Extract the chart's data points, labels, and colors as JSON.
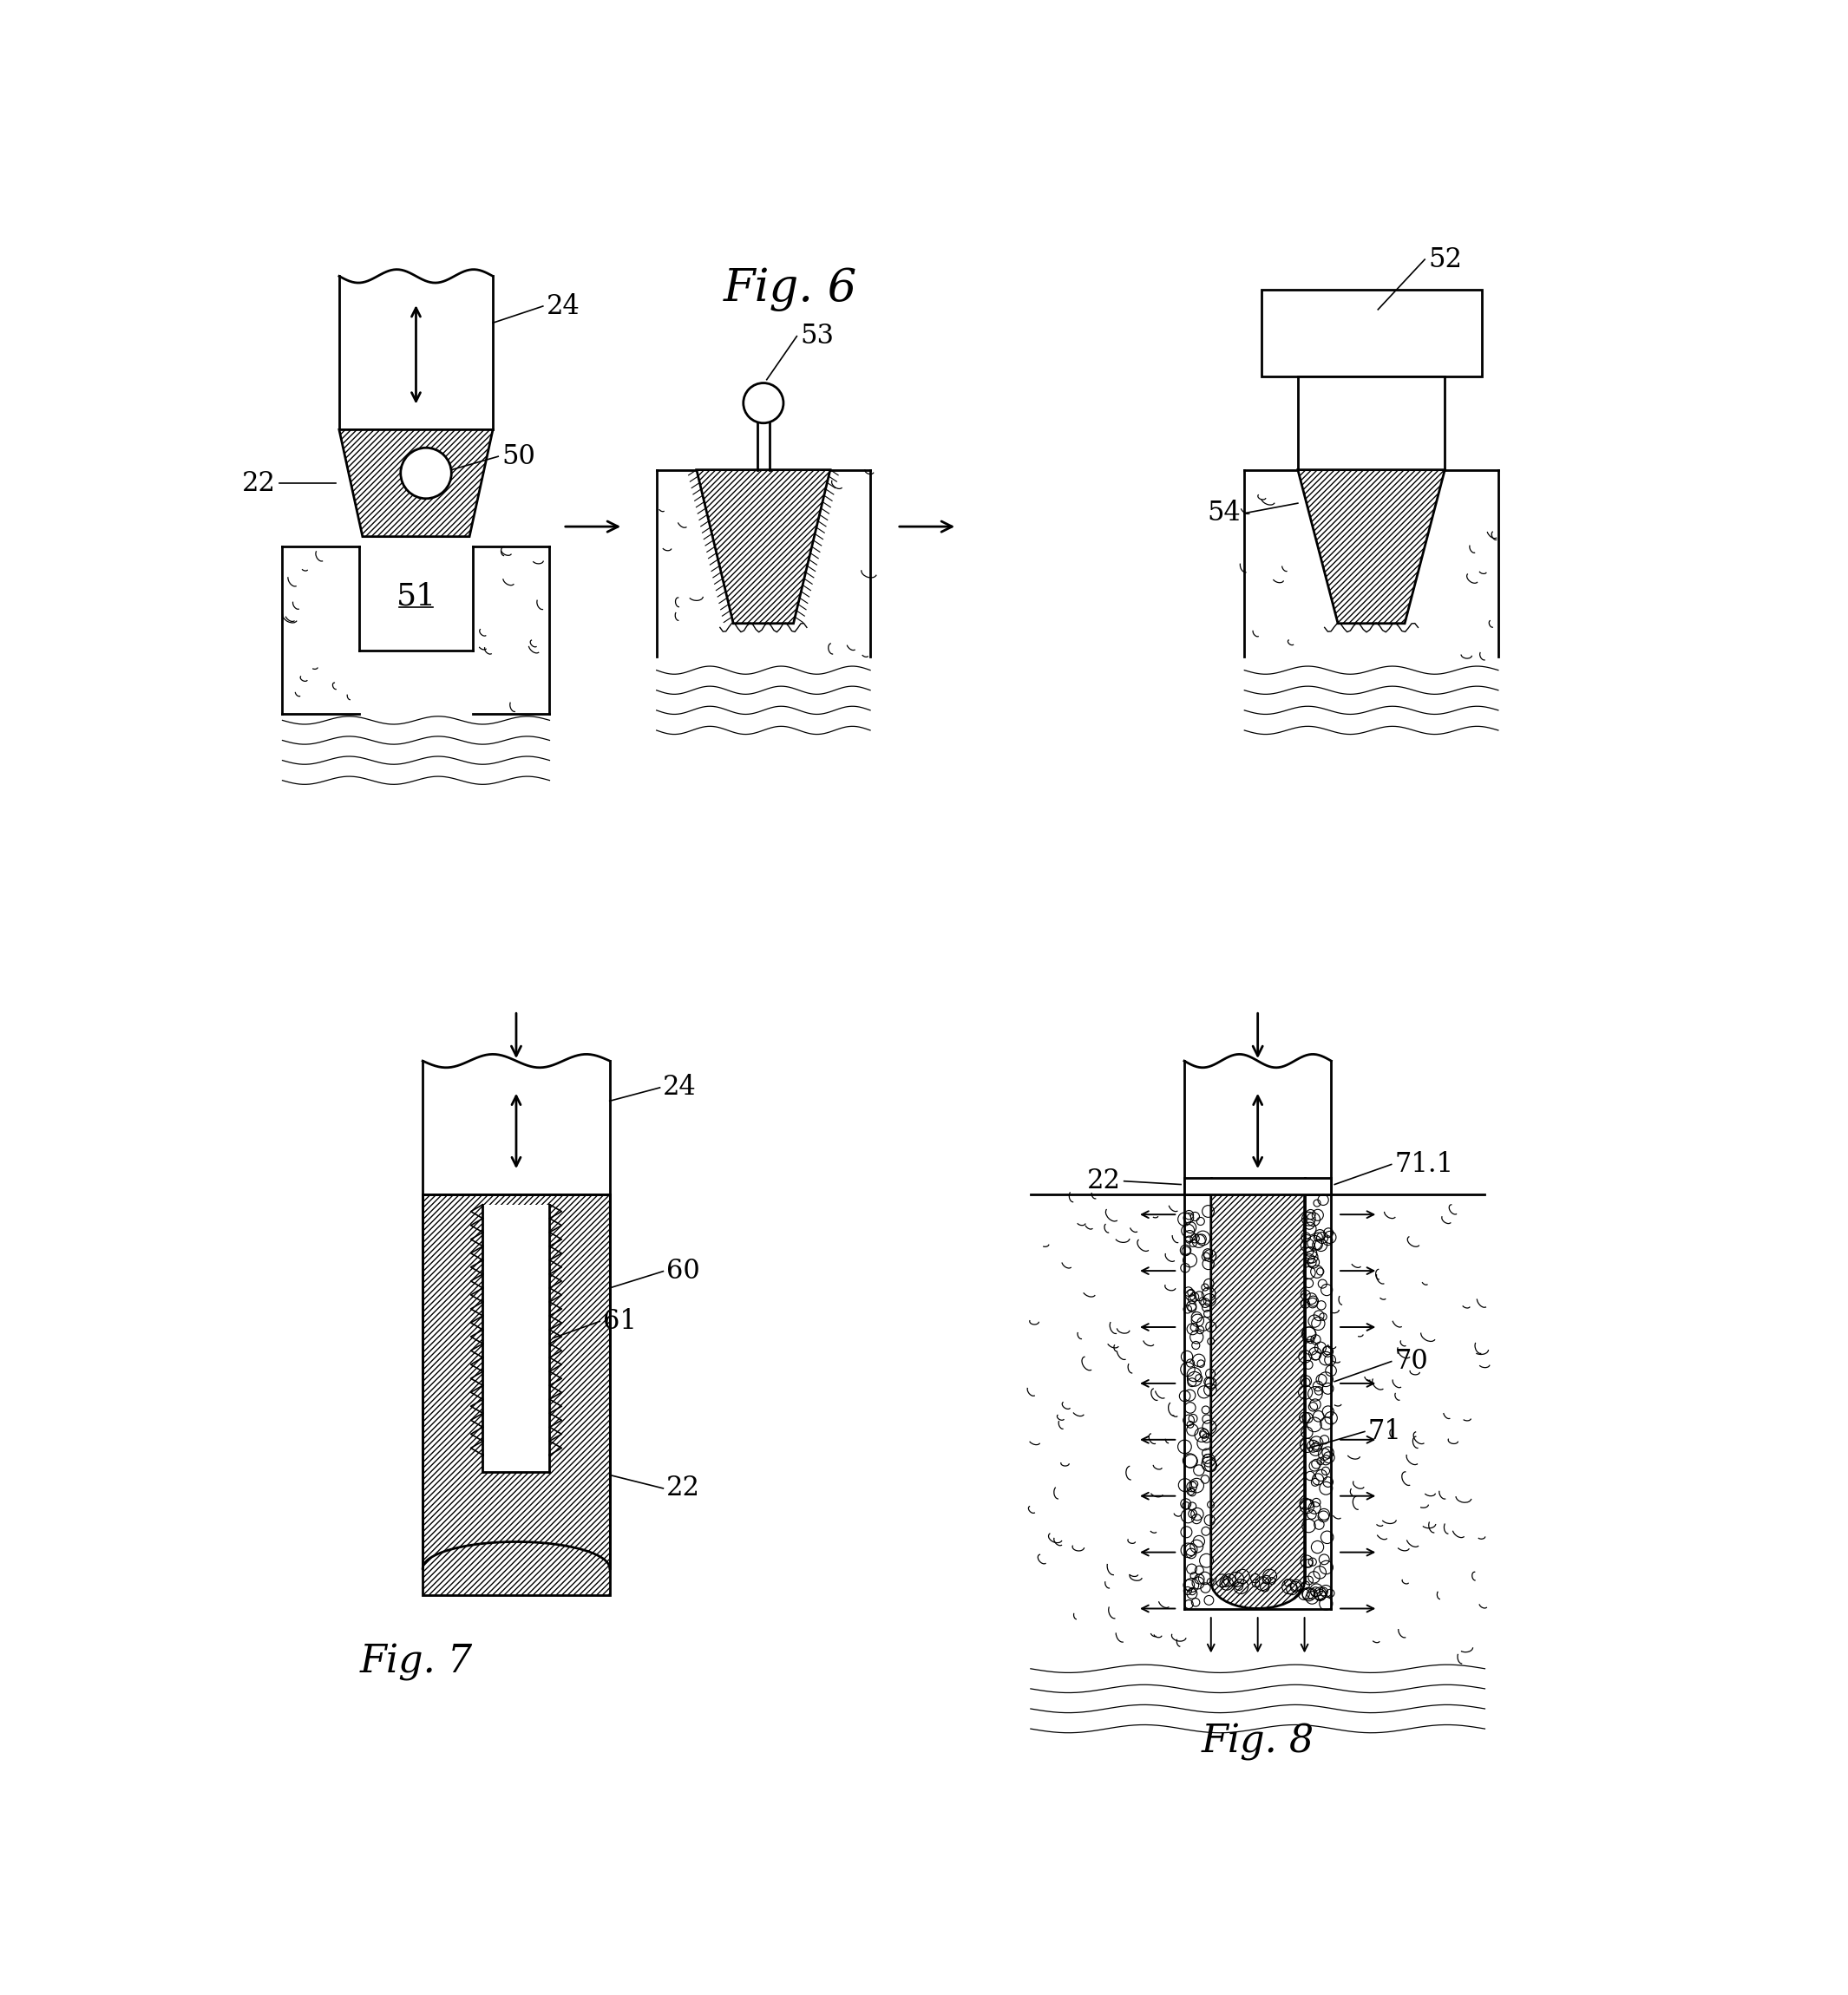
{
  "bg_color": "#ffffff",
  "fig6_title": "Fig. 6",
  "fig7_title": "Fig. 7",
  "fig8_title": "Fig. 8"
}
